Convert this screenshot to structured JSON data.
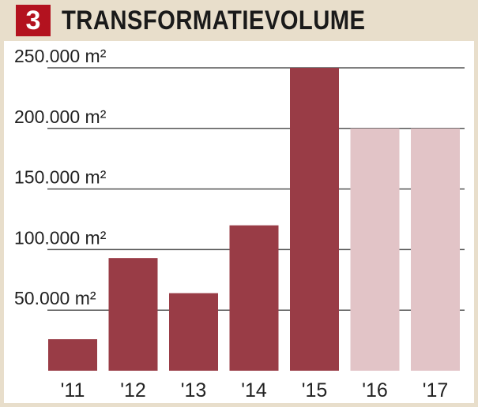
{
  "header": {
    "badge": "3",
    "title": "TRANSFORMATIEVOLUME"
  },
  "colors": {
    "actual": "#993c46",
    "forecast": "#e2c4c7",
    "header_bg": "#e8decb",
    "badge_bg": "#b3121f",
    "gridline": "#555555"
  },
  "chart_data": {
    "type": "bar",
    "categories": [
      "'11",
      "'12",
      "'13",
      "'14",
      "'15",
      "'16",
      "'17"
    ],
    "values": [
      26000,
      93000,
      64000,
      120000,
      250000,
      200000,
      200000
    ],
    "forecast": [
      false,
      false,
      false,
      false,
      false,
      true,
      true
    ],
    "ylim": [
      0,
      250000
    ],
    "yticks": [
      {
        "value": 50000,
        "label": "50.000 m²"
      },
      {
        "value": 100000,
        "label": "100.000 m²"
      },
      {
        "value": 150000,
        "label": "150.000 m²"
      },
      {
        "value": 200000,
        "label": "200.000 m²"
      },
      {
        "value": 250000,
        "label": "250.000 m²"
      }
    ],
    "grid": true
  }
}
